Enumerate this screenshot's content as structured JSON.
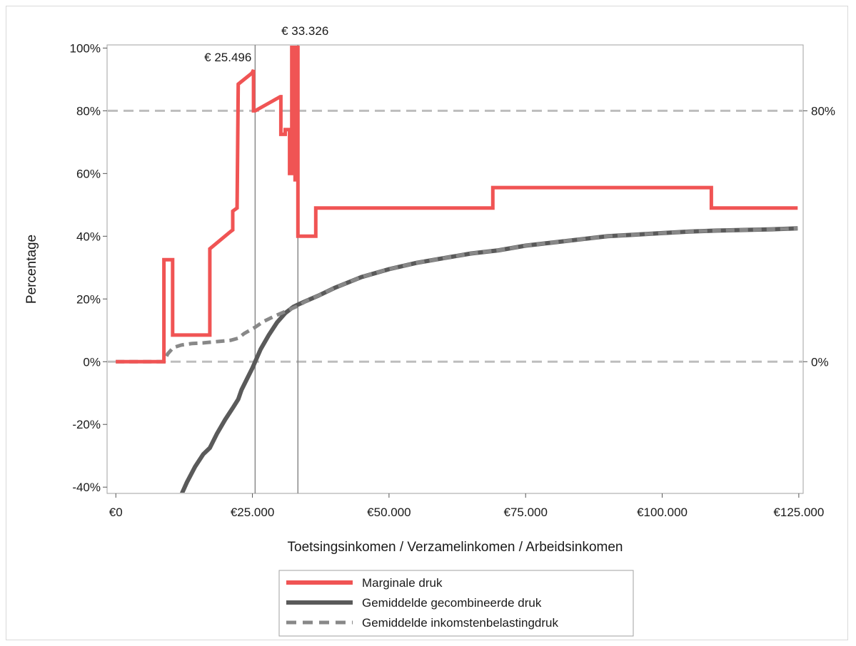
{
  "chart_data": {
    "type": "line",
    "title": "",
    "xlabel": "Toetsingsinkomen / Verzamelinkomen / Arbeidsinkomen",
    "ylabel": "Percentage",
    "xlim": [
      -1600,
      125800
    ],
    "ylim": [
      -42,
      101
    ],
    "x_ticks": [
      {
        "value": 0,
        "label": "€0"
      },
      {
        "value": 25000,
        "label": "€25.000"
      },
      {
        "value": 50000,
        "label": "€50.000"
      },
      {
        "value": 75000,
        "label": "€75.000"
      },
      {
        "value": 100000,
        "label": "€100.000"
      },
      {
        "value": 125000,
        "label": "€125.000"
      }
    ],
    "y_ticks": [
      {
        "value": 100,
        "label": "100%"
      },
      {
        "value": 80,
        "label": "80%"
      },
      {
        "value": 60,
        "label": "60%"
      },
      {
        "value": 40,
        "label": "40%"
      },
      {
        "value": 20,
        "label": "20%"
      },
      {
        "value": 0,
        "label": "0%"
      },
      {
        "value": -20,
        "label": "-20%"
      },
      {
        "value": -40,
        "label": "-40%"
      }
    ],
    "right_ticks": [
      {
        "value": 80,
        "label": "80%"
      },
      {
        "value": 0,
        "label": "0%"
      }
    ],
    "reference_lines_y": [
      80,
      0
    ],
    "reference_lines_x": [
      {
        "value": 25496,
        "label": "€ 25.496"
      },
      {
        "value": 33326,
        "label": "€ 33.326"
      }
    ],
    "grid": false,
    "legend_position": "bottom",
    "series": [
      {
        "name": "Marginale druk",
        "color": "#f05454",
        "style": "solid",
        "x": [
          0,
          8800,
          8800,
          10400,
          10400,
          17200,
          17200,
          21000,
          21400,
          21400,
          22200,
          22200,
          22400,
          22400,
          24900,
          25200,
          25200,
          25496,
          30100,
          30200,
          30200,
          31000,
          31000,
          31800,
          31800,
          32200,
          32200,
          32800,
          32800,
          33326,
          33326,
          33326,
          33326,
          36600,
          36600,
          69000,
          69000,
          109000,
          109000,
          124800
        ],
        "y": [
          0,
          0,
          32.5,
          32.5,
          8.5,
          8.5,
          36,
          41.5,
          42,
          48,
          49,
          49.5,
          88.5,
          88.5,
          92,
          93,
          80,
          80,
          84.5,
          84.5,
          72.5,
          72.5,
          74,
          74,
          60,
          60,
          101,
          101,
          58,
          58,
          101,
          101,
          40,
          40,
          49,
          49,
          55.5,
          55.5,
          49,
          49
        ]
      },
      {
        "name": "Gemiddelde gecombineerde druk",
        "color": "#5a5a5a",
        "style": "solid",
        "x": [
          12100,
          13000,
          14500,
          16000,
          17200,
          18500,
          20000,
          21500,
          22400,
          23000,
          24000,
          25000,
          25496,
          26500,
          28000,
          29500,
          31000,
          32500,
          33326,
          35000,
          37000,
          40000,
          45000,
          50000,
          55000,
          60000,
          65000,
          70000,
          75000,
          80000,
          85000,
          90000,
          95000,
          100000,
          105000,
          110000,
          115000,
          120000,
          124800
        ],
        "y": [
          -42,
          -38.5,
          -33.5,
          -29.5,
          -27.5,
          -23,
          -18.5,
          -14.5,
          -12,
          -9,
          -5.5,
          -2,
          0,
          4,
          8.5,
          12.5,
          15.5,
          17.5,
          18.2,
          19.5,
          21,
          23.5,
          27,
          29.5,
          31.5,
          33,
          34.5,
          35.5,
          37,
          38,
          39,
          40,
          40.5,
          41,
          41.5,
          41.8,
          42,
          42.2,
          42.5
        ]
      },
      {
        "name": "Gemiddelde inkomstenbelastingdruk",
        "color": "#888888",
        "style": "dashed",
        "x": [
          0,
          8800,
          9500,
          10500,
          12000,
          14000,
          16000,
          17200,
          19000,
          21000,
          22400,
          23500,
          25000,
          25496,
          27000,
          29000,
          31000,
          33326,
          35000,
          37000,
          40000,
          45000,
          50000,
          55000,
          60000,
          65000,
          70000,
          75000,
          80000,
          85000,
          90000,
          95000,
          100000,
          105000,
          110000,
          115000,
          120000,
          124800
        ],
        "y": [
          0,
          0,
          2.5,
          4.5,
          5.3,
          5.8,
          6,
          6.2,
          6.5,
          6.8,
          7.5,
          9,
          10.5,
          11,
          12.8,
          14.5,
          16,
          17.8,
          19.5,
          21,
          23.5,
          27,
          29.5,
          31.5,
          33,
          34.5,
          35.5,
          37,
          38,
          39,
          40,
          40.5,
          41,
          41.5,
          41.8,
          42,
          42.2,
          42.5
        ]
      }
    ]
  }
}
